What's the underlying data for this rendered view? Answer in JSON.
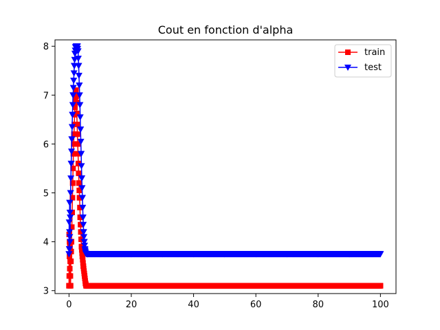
{
  "chart_data": {
    "type": "line",
    "title": "Cout en fonction d'alpha",
    "xlabel": "",
    "ylabel": "",
    "xlim": [
      -4.5,
      105
    ],
    "ylim": [
      2.94,
      8.13
    ],
    "xticks": [
      0,
      20,
      40,
      60,
      80,
      100
    ],
    "yticks": [
      3,
      4,
      5,
      6,
      7,
      8
    ],
    "grid": false,
    "legend_position": "top-right",
    "series": [
      {
        "name": "train",
        "color": "#ff0000",
        "marker": "square",
        "points": [
          [
            0,
            3.1
          ],
          [
            0.05,
            4.15
          ],
          [
            0.1,
            3.3
          ],
          [
            0.15,
            3.7
          ],
          [
            0.2,
            4.0
          ],
          [
            0.25,
            3.45
          ],
          [
            0.3,
            3.9
          ],
          [
            0.35,
            3.1
          ],
          [
            0.4,
            3.6
          ],
          [
            0.45,
            3.3
          ],
          [
            0.5,
            3.1
          ],
          [
            0.6,
            3.6
          ],
          [
            0.8,
            4.0
          ],
          [
            1.0,
            4.6
          ],
          [
            1.2,
            5.2
          ],
          [
            1.4,
            5.8
          ],
          [
            1.6,
            6.2
          ],
          [
            1.8,
            6.6
          ],
          [
            2.0,
            6.9
          ],
          [
            2.2,
            7.1
          ],
          [
            2.4,
            6.85
          ],
          [
            2.6,
            6.4
          ],
          [
            2.8,
            6.0
          ],
          [
            3.0,
            5.6
          ],
          [
            3.2,
            5.2
          ],
          [
            3.4,
            4.9
          ],
          [
            3.6,
            4.5
          ],
          [
            3.8,
            4.2
          ],
          [
            4.0,
            3.9
          ],
          [
            4.3,
            3.7
          ],
          [
            4.6,
            3.5
          ],
          [
            5.0,
            3.3
          ],
          [
            5.3,
            3.15
          ],
          [
            5.5,
            3.1
          ],
          [
            6,
            3.1
          ],
          [
            10,
            3.1
          ],
          [
            20,
            3.1
          ],
          [
            30,
            3.1
          ],
          [
            40,
            3.1
          ],
          [
            50,
            3.1
          ],
          [
            60,
            3.1
          ],
          [
            70,
            3.1
          ],
          [
            80,
            3.1
          ],
          [
            90,
            3.1
          ],
          [
            100,
            3.1
          ]
        ]
      },
      {
        "name": "test",
        "color": "#0000ff",
        "marker": "triangle-down",
        "points": [
          [
            0,
            3.75
          ],
          [
            0.05,
            4.4
          ],
          [
            0.1,
            3.85
          ],
          [
            0.15,
            4.2
          ],
          [
            0.2,
            4.8
          ],
          [
            0.25,
            4.1
          ],
          [
            0.3,
            4.6
          ],
          [
            0.35,
            4.0
          ],
          [
            0.4,
            4.5
          ],
          [
            0.5,
            5.0
          ],
          [
            0.7,
            5.6
          ],
          [
            0.9,
            6.1
          ],
          [
            1.1,
            6.6
          ],
          [
            1.3,
            7.0
          ],
          [
            1.5,
            7.3
          ],
          [
            1.7,
            7.6
          ],
          [
            1.9,
            7.85
          ],
          [
            2.1,
            7.98
          ],
          [
            2.3,
            8.0
          ],
          [
            2.5,
            8.0
          ],
          [
            2.7,
            8.0
          ],
          [
            2.9,
            7.9
          ],
          [
            3.1,
            7.6
          ],
          [
            3.3,
            7.2
          ],
          [
            3.5,
            6.8
          ],
          [
            3.7,
            6.3
          ],
          [
            3.9,
            5.8
          ],
          [
            4.1,
            5.3
          ],
          [
            4.3,
            4.9
          ],
          [
            4.5,
            4.5
          ],
          [
            4.7,
            4.2
          ],
          [
            4.9,
            4.0
          ],
          [
            5.1,
            3.85
          ],
          [
            5.4,
            3.76
          ],
          [
            5.7,
            3.75
          ],
          [
            6,
            3.75
          ],
          [
            10,
            3.75
          ],
          [
            20,
            3.75
          ],
          [
            30,
            3.75
          ],
          [
            40,
            3.75
          ],
          [
            50,
            3.75
          ],
          [
            60,
            3.75
          ],
          [
            70,
            3.75
          ],
          [
            80,
            3.75
          ],
          [
            90,
            3.75
          ],
          [
            100,
            3.75
          ]
        ]
      }
    ]
  }
}
